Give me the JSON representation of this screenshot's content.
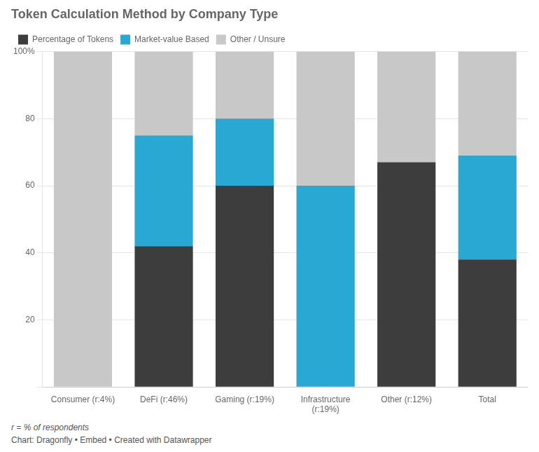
{
  "chart_data": {
    "type": "bar",
    "stacked": true,
    "title": "Token Calculation Method by Company Type",
    "categories": [
      "Consumer (r:4%)",
      "DeFi (r:46%)",
      "Gaming (r:19%)",
      "Infrastructure\n(r:19%)",
      "Other (r:12%)",
      "Total"
    ],
    "series": [
      {
        "name": "Percentage of Tokens",
        "color": "#3d3d3d",
        "values": [
          0,
          42,
          60,
          0,
          67,
          38
        ]
      },
      {
        "name": "Market-value Based",
        "color": "#29a8d4",
        "values": [
          0,
          33,
          20,
          60,
          0,
          31
        ]
      },
      {
        "name": "Other / Unsure",
        "color": "#c8c8c8",
        "values": [
          100,
          25,
          20,
          40,
          33,
          31
        ]
      }
    ],
    "ylim": [
      0,
      100
    ],
    "yticks": [
      {
        "value": 0,
        "label": ""
      },
      20,
      40,
      60,
      80,
      {
        "value": 100,
        "label": "100%"
      }
    ],
    "grid": true,
    "legend": "top-left",
    "annotations": [
      "r = % of respondents",
      "Chart: Dragonfly • Embed • Created with Datawrapper"
    ]
  }
}
